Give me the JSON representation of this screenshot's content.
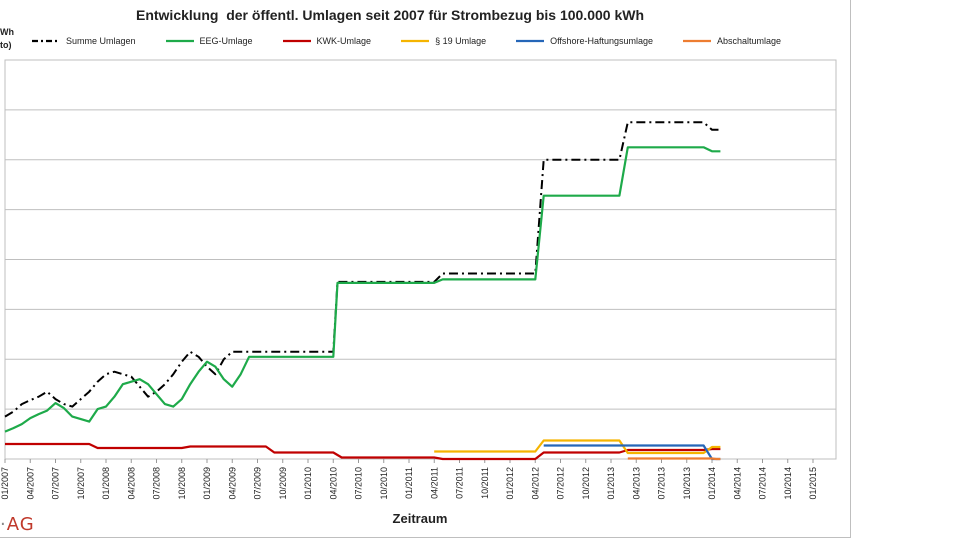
{
  "chart_data": {
    "type": "line",
    "title": "Entwicklung  der öffentl. Umlagen seit 2007 für Strombezug bis 100.000 kWh",
    "ylabel_fragments": [
      "Wh",
      "to)"
    ],
    "xlabel": "Zeitraum",
    "ylim": [
      0,
      8
    ],
    "grid": true,
    "legend_position": "top",
    "x_tick_labels": [
      "01/2007",
      "04/2007",
      "07/2007",
      "10/2007",
      "01/2008",
      "04/2008",
      "07/2008",
      "10/2008",
      "01/2009",
      "04/2009",
      "07/2009",
      "10/2009",
      "01/2010",
      "04/2010",
      "07/2010",
      "10/2010",
      "01/2011",
      "04/2011",
      "07/2011",
      "10/2011",
      "01/2012",
      "04/2012",
      "07/2012",
      "10/2012",
      "01/2013",
      "04/2013",
      "07/2013",
      "10/2013",
      "01/2014",
      "04/2014",
      "07/2014",
      "10/2014",
      "01/2015"
    ],
    "series": [
      {
        "name": "Summe Umlagen",
        "color": "#000000",
        "style": "dashdot",
        "points": [
          [
            0,
            0.85
          ],
          [
            1,
            0.95
          ],
          [
            2,
            1.1
          ],
          [
            3,
            1.18
          ],
          [
            4,
            1.25
          ],
          [
            5,
            1.35
          ],
          [
            6,
            1.2
          ],
          [
            7,
            1.1
          ],
          [
            8,
            1.05
          ],
          [
            9,
            1.2
          ],
          [
            10,
            1.35
          ],
          [
            11,
            1.55
          ],
          [
            12,
            1.7
          ],
          [
            13,
            1.75
          ],
          [
            14,
            1.7
          ],
          [
            15,
            1.65
          ],
          [
            16,
            1.45
          ],
          [
            17,
            1.25
          ],
          [
            18,
            1.35
          ],
          [
            19,
            1.5
          ],
          [
            20,
            1.7
          ],
          [
            21,
            1.95
          ],
          [
            22,
            2.15
          ],
          [
            23,
            2.05
          ],
          [
            24,
            1.85
          ],
          [
            25,
            1.7
          ],
          [
            26,
            2.0
          ],
          [
            27,
            2.15
          ],
          [
            39,
            2.15
          ],
          [
            39.5,
            3.55
          ],
          [
            51,
            3.55
          ],
          [
            52,
            3.72
          ],
          [
            63,
            3.72
          ],
          [
            64,
            6.0
          ],
          [
            73,
            6.0
          ],
          [
            74,
            6.75
          ],
          [
            83,
            6.75
          ],
          [
            84,
            6.6
          ],
          [
            85,
            6.6
          ]
        ]
      },
      {
        "name": "EEG-Umlage",
        "color": "#1eaa4a",
        "style": "solid",
        "points": [
          [
            0,
            0.55
          ],
          [
            1,
            0.62
          ],
          [
            2,
            0.7
          ],
          [
            3,
            0.82
          ],
          [
            4,
            0.9
          ],
          [
            5,
            0.97
          ],
          [
            6,
            1.12
          ],
          [
            7,
            1.02
          ],
          [
            8,
            0.85
          ],
          [
            9,
            0.8
          ],
          [
            10,
            0.75
          ],
          [
            11,
            1.0
          ],
          [
            12,
            1.05
          ],
          [
            13,
            1.25
          ],
          [
            14,
            1.5
          ],
          [
            15,
            1.55
          ],
          [
            16,
            1.6
          ],
          [
            17,
            1.5
          ],
          [
            18,
            1.3
          ],
          [
            19,
            1.1
          ],
          [
            20,
            1.05
          ],
          [
            21,
            1.2
          ],
          [
            22,
            1.5
          ],
          [
            23,
            1.75
          ],
          [
            24,
            1.95
          ],
          [
            25,
            1.85
          ],
          [
            26,
            1.6
          ],
          [
            27,
            1.45
          ],
          [
            28,
            1.7
          ],
          [
            29,
            2.05
          ],
          [
            39,
            2.05
          ],
          [
            39.5,
            3.53
          ],
          [
            51,
            3.53
          ],
          [
            52,
            3.6
          ],
          [
            63,
            3.6
          ],
          [
            64,
            5.28
          ],
          [
            73,
            5.28
          ],
          [
            74,
            6.25
          ],
          [
            83,
            6.25
          ],
          [
            84,
            6.17
          ],
          [
            85,
            6.17
          ]
        ]
      },
      {
        "name": "KWK-Umlage",
        "color": "#c00000",
        "style": "solid",
        "points": [
          [
            0,
            0.3
          ],
          [
            10,
            0.3
          ],
          [
            11,
            0.22
          ],
          [
            21,
            0.22
          ],
          [
            22,
            0.25
          ],
          [
            31,
            0.25
          ],
          [
            32,
            0.13
          ],
          [
            39,
            0.13
          ],
          [
            40,
            0.03
          ],
          [
            51,
            0.03
          ],
          [
            52,
            0.0
          ],
          [
            63,
            0.0
          ],
          [
            64,
            0.13
          ],
          [
            73,
            0.13
          ],
          [
            74,
            0.18
          ],
          [
            83,
            0.18
          ],
          [
            84,
            0.2
          ],
          [
            85,
            0.2
          ]
        ]
      },
      {
        "name": "§ 19 Umlage",
        "color": "#f5b400",
        "style": "solid",
        "points": [
          [
            51,
            0.15
          ],
          [
            63,
            0.15
          ],
          [
            64,
            0.37
          ],
          [
            73,
            0.37
          ],
          [
            74,
            0.12
          ],
          [
            83,
            0.12
          ],
          [
            84,
            0.24
          ],
          [
            85,
            0.24
          ]
        ]
      },
      {
        "name": "Offshore-Haftungsumlage",
        "color": "#2566b8",
        "style": "solid",
        "points": [
          [
            64,
            0.27
          ],
          [
            83,
            0.27
          ],
          [
            84,
            0.0
          ],
          [
            85,
            0.0
          ]
        ]
      },
      {
        "name": "Abschaltumlage",
        "color": "#ed7d31",
        "style": "solid",
        "points": [
          [
            74,
            0.01
          ],
          [
            83,
            0.01
          ],
          [
            84,
            0.01
          ],
          [
            84.5,
            0.0
          ],
          [
            85,
            0.0
          ]
        ]
      }
    ]
  },
  "logo": {
    "text": "AG"
  }
}
